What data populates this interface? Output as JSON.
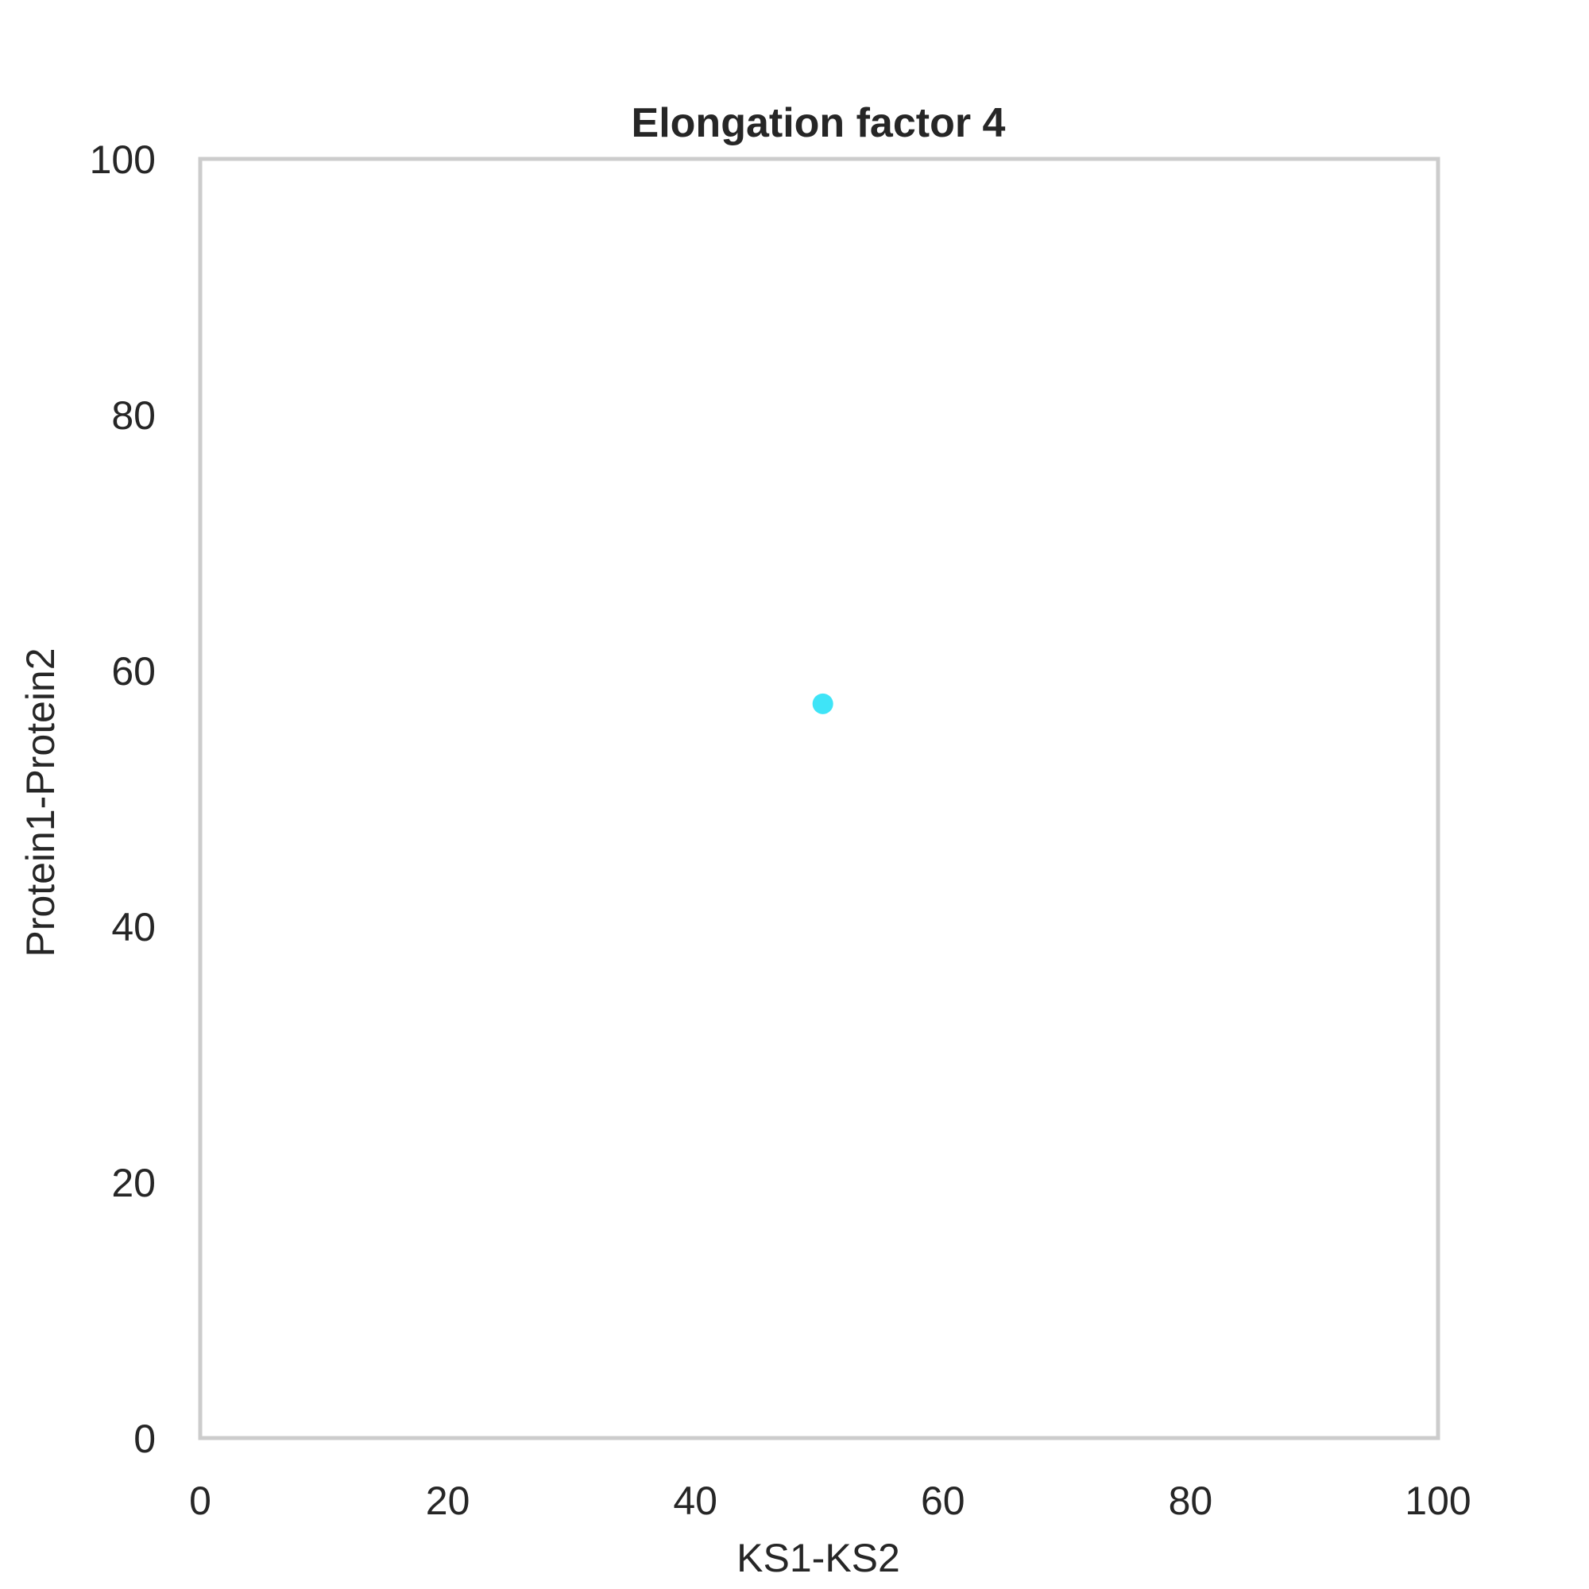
{
  "chart_data": {
    "type": "scatter",
    "title": "Elongation factor 4",
    "xlabel": "KS1-KS2",
    "ylabel": "Protein1-Protein2",
    "xlim": [
      0,
      100
    ],
    "ylim": [
      0,
      100
    ],
    "xticks": [
      "0",
      "20",
      "40",
      "60",
      "80",
      "100"
    ],
    "yticks": [
      "0",
      "20",
      "40",
      "60",
      "80",
      "100"
    ],
    "grid": false,
    "legend": "none",
    "series": [
      {
        "color": "#3fe4f7",
        "points": [
          {
            "x": 50.3,
            "y": 57.4
          }
        ]
      }
    ]
  }
}
